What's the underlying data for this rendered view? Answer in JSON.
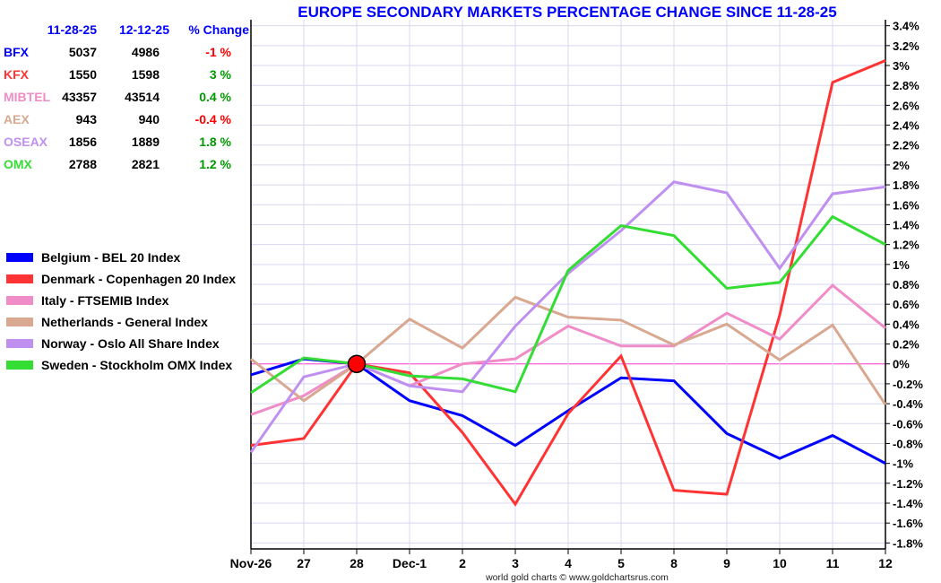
{
  "chart_data": {
    "type": "line",
    "title": "EUROPE SECONDARY MARKETS PERCENTAGE CHANGE SINCE 11-28-25",
    "footer": "world gold charts © www.goldchartsrus.com",
    "categories": [
      "Nov-26",
      "27",
      "28",
      "Dec-1",
      "2",
      "3",
      "4",
      "5",
      "8",
      "9",
      "10",
      "11",
      "12"
    ],
    "ylim": [
      -1.86,
      3.46
    ],
    "yticks": [
      3.4,
      3.2,
      3,
      2.8,
      2.6,
      2.4,
      2.2,
      2,
      1.8,
      1.6,
      1.4,
      1.2,
      1,
      0.8,
      0.6,
      0.4,
      0.2,
      0,
      -0.2,
      -0.4,
      -0.6,
      -0.8,
      -1,
      -1.2,
      -1.4,
      -1.6,
      -1.8
    ],
    "ytick_suffix": "%",
    "grid": true,
    "reference_point": {
      "category": "28",
      "value": 0
    },
    "series": [
      {
        "name": "Belgium - BEL 20 Index",
        "color": "#0000ff",
        "values": [
          -0.11,
          0.05,
          0,
          -0.37,
          -0.52,
          -0.82,
          -0.47,
          -0.14,
          -0.17,
          -0.7,
          -0.95,
          -0.72,
          -1.0
        ]
      },
      {
        "name": "Denmark - Copenhagen 20 Index",
        "color": "#ff3333",
        "values": [
          -0.82,
          -0.75,
          0,
          -0.09,
          -0.69,
          -1.41,
          -0.5,
          0.08,
          -1.27,
          -1.31,
          0.49,
          2.83,
          3.05
        ]
      },
      {
        "name": "Italy - FTSEMIB Index",
        "color": "#f08cc8",
        "values": [
          -0.51,
          -0.32,
          0,
          -0.22,
          0,
          0.05,
          0.38,
          0.18,
          0.18,
          0.51,
          0.25,
          0.79,
          0.36
        ]
      },
      {
        "name": "Netherlands - General Index",
        "color": "#d8a890",
        "values": [
          0.05,
          -0.37,
          0,
          0.45,
          0.16,
          0.67,
          0.47,
          0.44,
          0.19,
          0.4,
          0.04,
          0.39,
          -0.41
        ]
      },
      {
        "name": "Norway -  Oslo All Share Index",
        "color": "#c090f0",
        "values": [
          -0.89,
          -0.13,
          0,
          -0.22,
          -0.28,
          0.38,
          0.91,
          1.34,
          1.83,
          1.72,
          0.96,
          1.71,
          1.78
        ]
      },
      {
        "name": "Sweden -  Stockholm OMX Index",
        "color": "#33dd33",
        "values": [
          -0.29,
          0.06,
          0,
          -0.12,
          -0.15,
          -0.28,
          0.94,
          1.39,
          1.29,
          0.76,
          0.82,
          1.48,
          1.2
        ]
      }
    ],
    "table": {
      "headers": [
        "11-28-25",
        "12-12-25",
        "% Change"
      ],
      "rows": [
        {
          "ticker": "BFX",
          "color": "#0000ff",
          "start": "5037",
          "end": "4986",
          "change": "-1 %",
          "change_color": "#ff0000"
        },
        {
          "ticker": "KFX",
          "color": "#ff3333",
          "start": "1550",
          "end": "1598",
          "change": "3 %",
          "change_color": "#009900"
        },
        {
          "ticker": "MIBTEL",
          "color": "#f08cc8",
          "start": "43357",
          "end": "43514",
          "change": "0.4 %",
          "change_color": "#009900"
        },
        {
          "ticker": "AEX",
          "color": "#d8a890",
          "start": "943",
          "end": "940",
          "change": "-0.4 %",
          "change_color": "#ff0000"
        },
        {
          "ticker": "OSEAX",
          "color": "#c090f0",
          "start": "1856",
          "end": "1889",
          "change": "1.8 %",
          "change_color": "#009900"
        },
        {
          "ticker": "OMX",
          "color": "#33dd33",
          "start": "2788",
          "end": "2821",
          "change": "1.2 %",
          "change_color": "#009900"
        }
      ]
    }
  }
}
